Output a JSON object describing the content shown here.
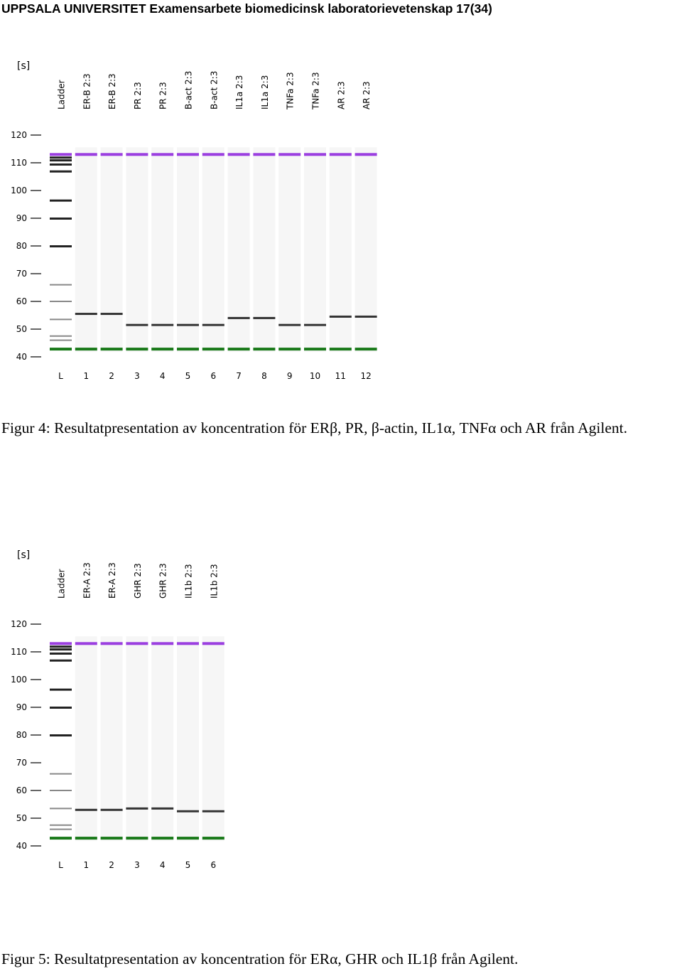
{
  "header": {
    "university": "UPPSALA UNIVERSITET",
    "program": "Examensarbete biomedicinsk laboratorievetenskap",
    "page": "17(34)"
  },
  "figures": [
    {
      "unit_label": "[s]",
      "ticks": [
        120,
        110,
        100,
        90,
        80,
        70,
        60,
        50,
        40
      ],
      "marker_colors": {
        "upper": "#9b3fe0",
        "lower": "#1a7a1a"
      },
      "lanes": [
        {
          "label": "Ladder",
          "number": "L"
        },
        {
          "label": "ER-B 2:3",
          "number": "1"
        },
        {
          "label": "ER-B 2:3",
          "number": "2"
        },
        {
          "label": "PR 2:3",
          "number": "3"
        },
        {
          "label": "PR 2:3",
          "number": "4"
        },
        {
          "label": "B-act 2:3",
          "number": "5"
        },
        {
          "label": "B-act 2:3",
          "number": "6"
        },
        {
          "label": "IL1a 2:3",
          "number": "7"
        },
        {
          "label": "IL1a 2:3",
          "number": "8"
        },
        {
          "label": "TNFa 2:3",
          "number": "9"
        },
        {
          "label": "TNFa 2:3",
          "number": "10"
        },
        {
          "label": "AR 2:3",
          "number": "11"
        },
        {
          "label": "AR 2:3",
          "number": "12"
        }
      ],
      "caption": "Figur 4: Resultatpresentation av koncentration för ERβ, PR, β-actin, IL1α, TNFα och AR från Agilent."
    },
    {
      "unit_label": "[s]",
      "ticks": [
        120,
        110,
        100,
        90,
        80,
        70,
        60,
        50,
        40
      ],
      "marker_colors": {
        "upper": "#9b3fe0",
        "lower": "#1a7a1a"
      },
      "lanes": [
        {
          "label": "Ladder",
          "number": "L"
        },
        {
          "label": "ER-A 2:3",
          "number": "1"
        },
        {
          "label": "ER-A 2:3",
          "number": "2"
        },
        {
          "label": "GHR 2:3",
          "number": "3"
        },
        {
          "label": "GHR 2:3",
          "number": "4"
        },
        {
          "label": "IL1b 2:3",
          "number": "5"
        },
        {
          "label": "IL1b 2:3",
          "number": "6"
        }
      ],
      "caption": "Figur 5: Resultatpresentation av koncentration för ERα, GHR och IL1β från Agilent."
    }
  ]
}
